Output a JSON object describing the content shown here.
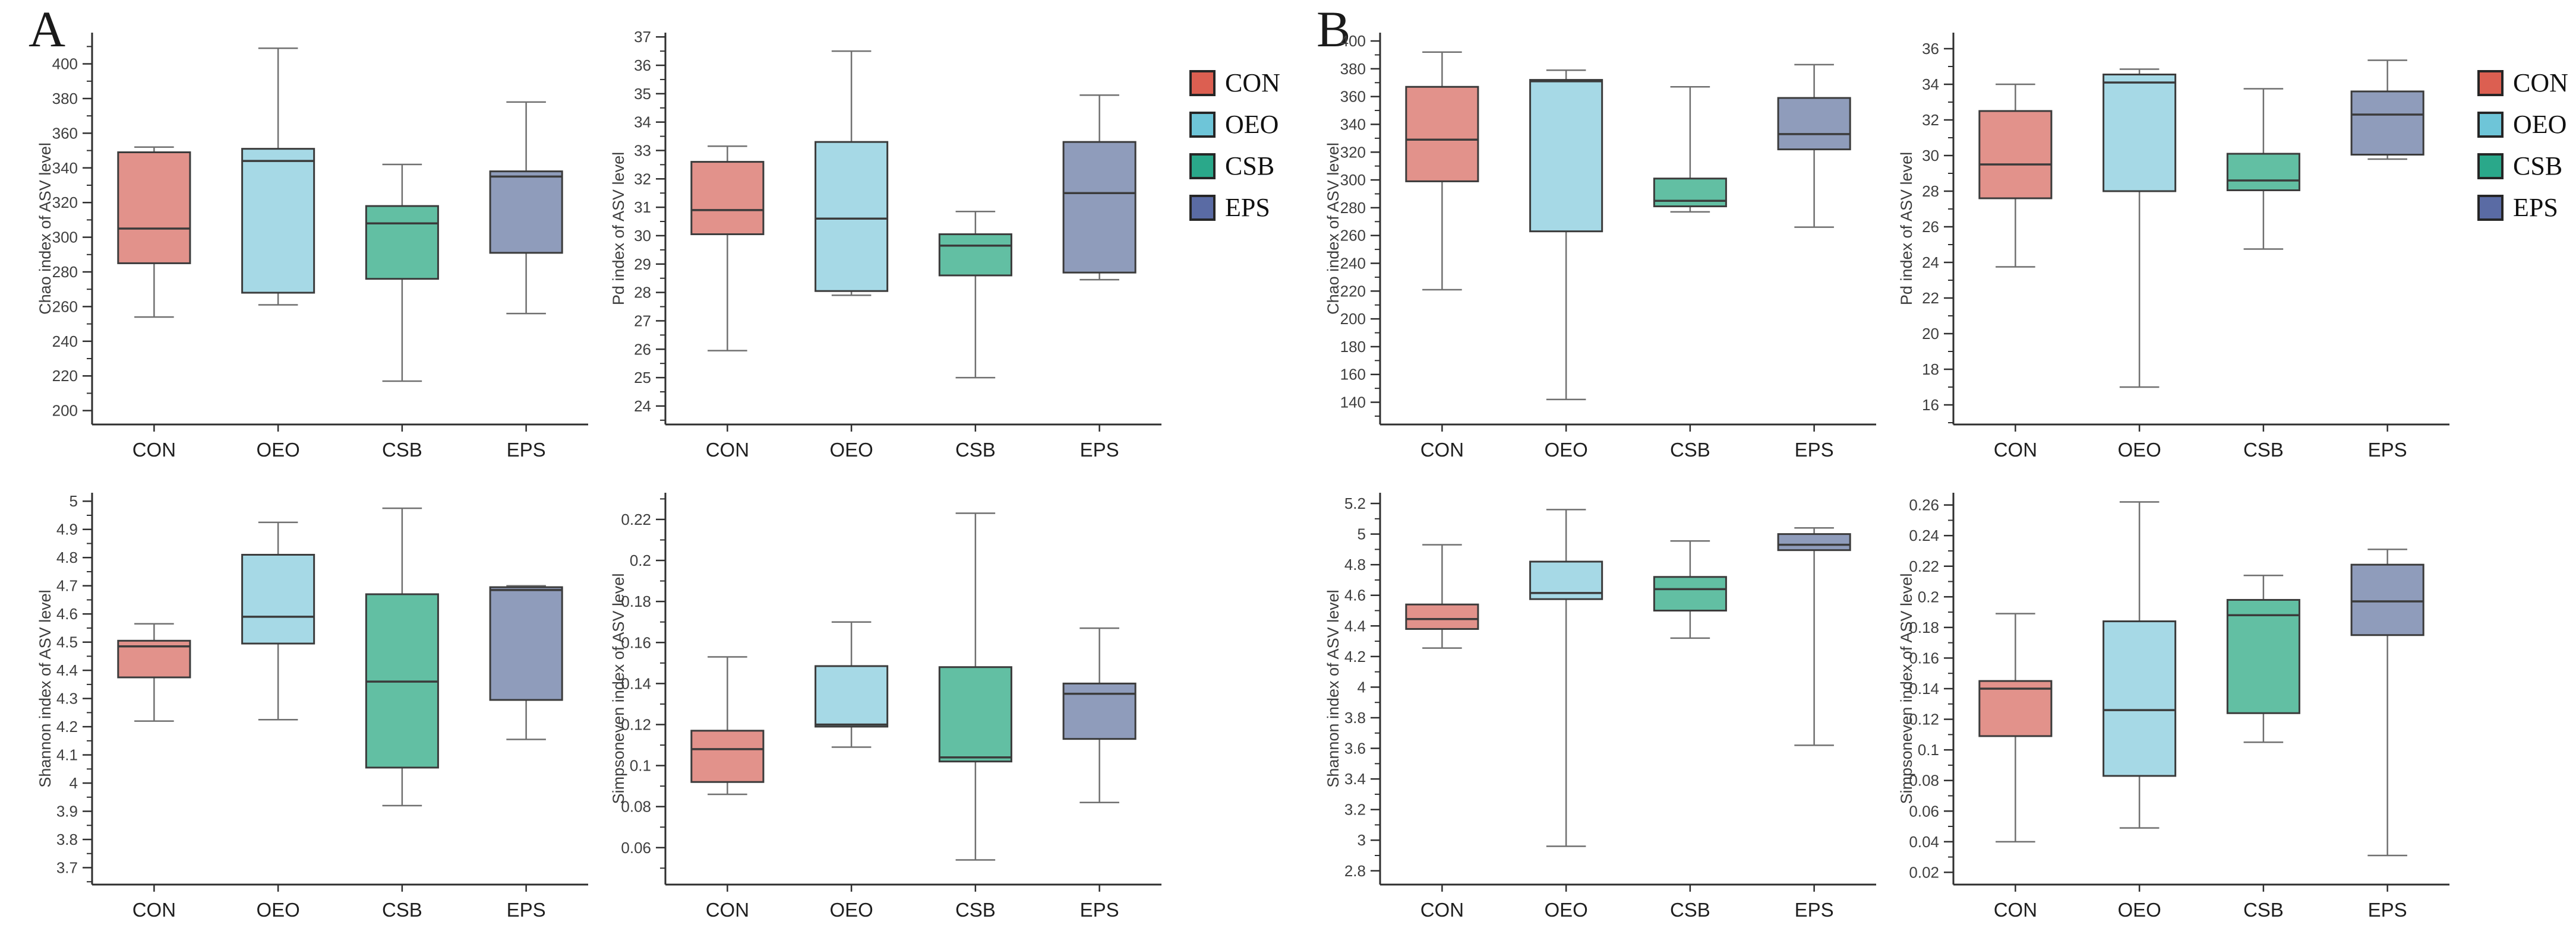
{
  "figure": {
    "background": "#ffffff",
    "panels": [
      {
        "label": "A"
      },
      {
        "label": "B"
      }
    ],
    "groups": [
      {
        "name": "CON",
        "legend_color": "#dc5f51",
        "box_fill": "#e2928b"
      },
      {
        "name": "OEO",
        "legend_color": "#6ec5d8",
        "box_fill": "#a6d9e6"
      },
      {
        "name": "CSB",
        "legend_color": "#2aa88a",
        "box_fill": "#62bfa3"
      },
      {
        "name": "EPS",
        "legend_color": "#5a6ba4",
        "box_fill": "#8f9cbb"
      }
    ]
  },
  "chart_data": [
    {
      "panel": "A",
      "type": "box",
      "title": "",
      "ylabel": "Chao index of ASV level",
      "xlabel": "",
      "categories": [
        "CON",
        "OEO",
        "CSB",
        "EPS"
      ],
      "ylim": [
        192,
        418
      ],
      "yticks": [
        200,
        220,
        240,
        260,
        280,
        300,
        320,
        340,
        360,
        380,
        400
      ],
      "series": [
        {
          "name": "CON",
          "min": 254,
          "q1": 285,
          "median": 305,
          "q3": 349,
          "max": 352
        },
        {
          "name": "OEO",
          "min": 261,
          "q1": 268,
          "median": 344,
          "q3": 351,
          "max": 409
        },
        {
          "name": "CSB",
          "min": 217,
          "q1": 276,
          "median": 308,
          "q3": 318,
          "max": 342
        },
        {
          "name": "EPS",
          "min": 256,
          "q1": 291,
          "median": 335,
          "q3": 338,
          "max": 378
        }
      ]
    },
    {
      "panel": "A",
      "type": "box",
      "title": "",
      "ylabel": "Pd index of ASV level",
      "xlabel": "",
      "categories": [
        "CON",
        "OEO",
        "CSB",
        "EPS"
      ],
      "ylim": [
        23.35,
        37.15
      ],
      "yticks": [
        24,
        25,
        26,
        27,
        28,
        29,
        30,
        31,
        32,
        33,
        34,
        35,
        36,
        37
      ],
      "series": [
        {
          "name": "CON",
          "min": 25.95,
          "q1": 30.05,
          "median": 30.9,
          "q3": 32.6,
          "max": 33.15
        },
        {
          "name": "OEO",
          "min": 27.9,
          "q1": 28.05,
          "median": 30.6,
          "q3": 33.3,
          "max": 36.5
        },
        {
          "name": "CSB",
          "min": 25.0,
          "q1": 28.6,
          "median": 29.65,
          "q3": 30.05,
          "max": 30.85
        },
        {
          "name": "EPS",
          "min": 28.45,
          "q1": 28.7,
          "median": 31.5,
          "q3": 33.3,
          "max": 34.95
        }
      ]
    },
    {
      "panel": "A",
      "type": "box",
      "title": "",
      "ylabel": "Shannon index of ASV level",
      "xlabel": "",
      "categories": [
        "CON",
        "OEO",
        "CSB",
        "EPS"
      ],
      "ylim": [
        3.64,
        5.03
      ],
      "yticks": [
        3.7,
        3.8,
        3.9,
        4,
        4.1,
        4.2,
        4.3,
        4.4,
        4.5,
        4.6,
        4.7,
        4.8,
        4.9,
        5
      ],
      "series": [
        {
          "name": "CON",
          "min": 4.22,
          "q1": 4.375,
          "median": 4.485,
          "q3": 4.505,
          "max": 4.565
        },
        {
          "name": "OEO",
          "min": 4.225,
          "q1": 4.495,
          "median": 4.59,
          "q3": 4.81,
          "max": 4.925
        },
        {
          "name": "CSB",
          "min": 3.92,
          "q1": 4.055,
          "median": 4.36,
          "q3": 4.67,
          "max": 4.975
        },
        {
          "name": "EPS",
          "min": 4.155,
          "q1": 4.295,
          "median": 4.685,
          "q3": 4.695,
          "max": 4.7
        }
      ]
    },
    {
      "panel": "A",
      "type": "box",
      "title": "",
      "ylabel": "Simpsoneven index of ASV level",
      "xlabel": "",
      "categories": [
        "CON",
        "OEO",
        "CSB",
        "EPS"
      ],
      "ylim": [
        0.042,
        0.233
      ],
      "yticks": [
        0.06,
        0.08,
        0.1,
        0.12,
        0.14,
        0.16,
        0.18,
        0.2,
        0.22
      ],
      "series": [
        {
          "name": "CON",
          "min": 0.086,
          "q1": 0.092,
          "median": 0.108,
          "q3": 0.117,
          "max": 0.153
        },
        {
          "name": "OEO",
          "min": 0.109,
          "q1": 0.119,
          "median": 0.12,
          "q3": 0.1485,
          "max": 0.17
        },
        {
          "name": "CSB",
          "min": 0.054,
          "q1": 0.102,
          "median": 0.104,
          "q3": 0.148,
          "max": 0.223
        },
        {
          "name": "EPS",
          "min": 0.082,
          "q1": 0.113,
          "median": 0.135,
          "q3": 0.14,
          "max": 0.167
        }
      ]
    },
    {
      "panel": "B",
      "type": "box",
      "title": "",
      "ylabel": "Chao index of ASV level",
      "xlabel": "",
      "categories": [
        "CON",
        "OEO",
        "CSB",
        "EPS"
      ],
      "ylim": [
        124,
        406
      ],
      "yticks": [
        140,
        160,
        180,
        200,
        220,
        240,
        260,
        280,
        300,
        320,
        340,
        360,
        380,
        400
      ],
      "series": [
        {
          "name": "CON",
          "min": 221,
          "q1": 299,
          "median": 329,
          "q3": 367,
          "max": 392
        },
        {
          "name": "OEO",
          "min": 142,
          "q1": 263,
          "median": 371,
          "q3": 372,
          "max": 379
        },
        {
          "name": "CSB",
          "min": 277,
          "q1": 281,
          "median": 285,
          "q3": 301,
          "max": 367
        },
        {
          "name": "EPS",
          "min": 266,
          "q1": 322,
          "median": 333,
          "q3": 359,
          "max": 383
        }
      ]
    },
    {
      "panel": "B",
      "type": "box",
      "title": "",
      "ylabel": "Pd index of ASV level",
      "xlabel": "",
      "categories": [
        "CON",
        "OEO",
        "CSB",
        "EPS"
      ],
      "ylim": [
        14.9,
        36.9
      ],
      "yticks": [
        16,
        18,
        20,
        22,
        24,
        26,
        28,
        30,
        32,
        34,
        36
      ],
      "series": [
        {
          "name": "CON",
          "min": 23.75,
          "q1": 27.6,
          "median": 29.5,
          "q3": 32.5,
          "max": 34.0
        },
        {
          "name": "OEO",
          "min": 17.0,
          "q1": 28.0,
          "median": 34.1,
          "q3": 34.55,
          "max": 34.85
        },
        {
          "name": "CSB",
          "min": 24.75,
          "q1": 28.05,
          "median": 28.6,
          "q3": 30.1,
          "max": 33.75
        },
        {
          "name": "EPS",
          "min": 29.8,
          "q1": 30.05,
          "median": 32.3,
          "q3": 33.6,
          "max": 35.35
        }
      ]
    },
    {
      "panel": "B",
      "type": "box",
      "title": "",
      "ylabel": "Shannon index of ASV level",
      "xlabel": "",
      "categories": [
        "CON",
        "OEO",
        "CSB",
        "EPS"
      ],
      "ylim": [
        2.71,
        5.27
      ],
      "yticks": [
        2.8,
        3,
        3.2,
        3.4,
        3.6,
        3.8,
        4,
        4.2,
        4.4,
        4.6,
        4.8,
        5,
        5.2
      ],
      "series": [
        {
          "name": "CON",
          "min": 4.255,
          "q1": 4.38,
          "median": 4.445,
          "q3": 4.54,
          "max": 4.93
        },
        {
          "name": "OEO",
          "min": 2.96,
          "q1": 4.575,
          "median": 4.615,
          "q3": 4.82,
          "max": 5.16
        },
        {
          "name": "CSB",
          "min": 4.32,
          "q1": 4.5,
          "median": 4.64,
          "q3": 4.72,
          "max": 4.955
        },
        {
          "name": "EPS",
          "min": 3.62,
          "q1": 4.895,
          "median": 4.93,
          "q3": 5.0,
          "max": 5.04
        }
      ]
    },
    {
      "panel": "B",
      "type": "box",
      "title": "",
      "ylabel": "Simpsoneven index of ASV level",
      "xlabel": "",
      "categories": [
        "CON",
        "OEO",
        "CSB",
        "EPS"
      ],
      "ylim": [
        0.012,
        0.268
      ],
      "yticks": [
        0.02,
        0.04,
        0.06,
        0.08,
        0.1,
        0.12,
        0.14,
        0.16,
        0.18,
        0.2,
        0.22,
        0.24,
        0.26
      ],
      "series": [
        {
          "name": "CON",
          "min": 0.04,
          "q1": 0.109,
          "median": 0.14,
          "q3": 0.145,
          "max": 0.189
        },
        {
          "name": "OEO",
          "min": 0.049,
          "q1": 0.083,
          "median": 0.126,
          "q3": 0.184,
          "max": 0.262
        },
        {
          "name": "CSB",
          "min": 0.105,
          "q1": 0.124,
          "median": 0.188,
          "q3": 0.198,
          "max": 0.214
        },
        {
          "name": "EPS",
          "min": 0.031,
          "q1": 0.175,
          "median": 0.197,
          "q3": 0.221,
          "max": 0.231
        }
      ]
    }
  ]
}
